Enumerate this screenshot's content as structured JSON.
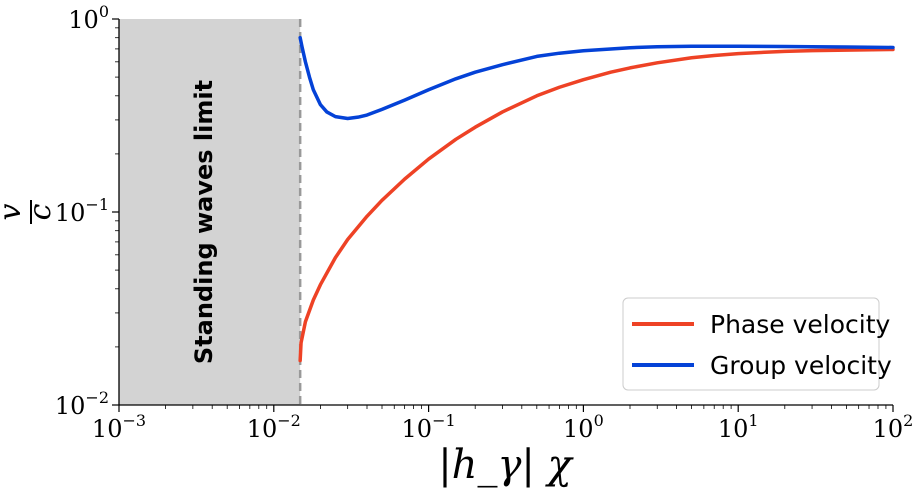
{
  "chart_data": {
    "type": "line",
    "x_scale": "log",
    "y_scale": "log",
    "xlim": [
      0.001,
      100
    ],
    "ylim": [
      0.01,
      1
    ],
    "xlabel": "|h_γ| χ",
    "ylabel_num": "v",
    "ylabel_den": "c",
    "x_ticks": [
      {
        "base": "10",
        "exp": "−3",
        "value": 0.001
      },
      {
        "base": "10",
        "exp": "−2",
        "value": 0.01
      },
      {
        "base": "10",
        "exp": "−1",
        "value": 0.1
      },
      {
        "base": "10",
        "exp": "0",
        "value": 1
      },
      {
        "base": "10",
        "exp": "1",
        "value": 10
      },
      {
        "base": "10",
        "exp": "2",
        "value": 100
      }
    ],
    "y_ticks": [
      {
        "base": "10",
        "exp": "−2",
        "value": 0.01
      },
      {
        "base": "10",
        "exp": "−1",
        "value": 0.1
      },
      {
        "base": "10",
        "exp": "0",
        "value": 1
      }
    ],
    "shaded_region": {
      "x_from": 0.001,
      "x_to": 0.0148,
      "color": "#d3d3d3",
      "label": "Standing waves limit"
    },
    "vline": {
      "x": 0.0148,
      "color": "#999999",
      "style": "dashed"
    },
    "legend_position": "bottom-right",
    "grid": false,
    "series": [
      {
        "name": "Phase velocity",
        "color": "#ee4225",
        "x": [
          0.0148,
          0.015,
          0.016,
          0.018,
          0.02,
          0.025,
          0.03,
          0.04,
          0.05,
          0.07,
          0.1,
          0.15,
          0.2,
          0.3,
          0.5,
          0.7,
          1,
          1.5,
          2,
          3,
          5,
          7,
          10,
          20,
          30,
          50,
          100
        ],
        "y": [
          0.017,
          0.021,
          0.027,
          0.035,
          0.042,
          0.058,
          0.072,
          0.095,
          0.115,
          0.148,
          0.188,
          0.238,
          0.275,
          0.33,
          0.4,
          0.443,
          0.485,
          0.53,
          0.558,
          0.593,
          0.63,
          0.647,
          0.662,
          0.68,
          0.686,
          0.69,
          0.695
        ]
      },
      {
        "name": "Group velocity",
        "color": "#0442d7",
        "x": [
          0.0148,
          0.0152,
          0.016,
          0.017,
          0.018,
          0.02,
          0.022,
          0.025,
          0.03,
          0.035,
          0.04,
          0.05,
          0.07,
          0.1,
          0.15,
          0.2,
          0.3,
          0.5,
          0.7,
          1,
          2,
          3,
          5,
          7,
          10,
          20,
          30,
          50,
          100
        ],
        "y": [
          0.8,
          0.72,
          0.6,
          0.5,
          0.43,
          0.36,
          0.33,
          0.312,
          0.305,
          0.31,
          0.318,
          0.34,
          0.38,
          0.43,
          0.49,
          0.53,
          0.58,
          0.64,
          0.665,
          0.685,
          0.71,
          0.718,
          0.722,
          0.723,
          0.722,
          0.72,
          0.718,
          0.716,
          0.712
        ]
      }
    ]
  }
}
